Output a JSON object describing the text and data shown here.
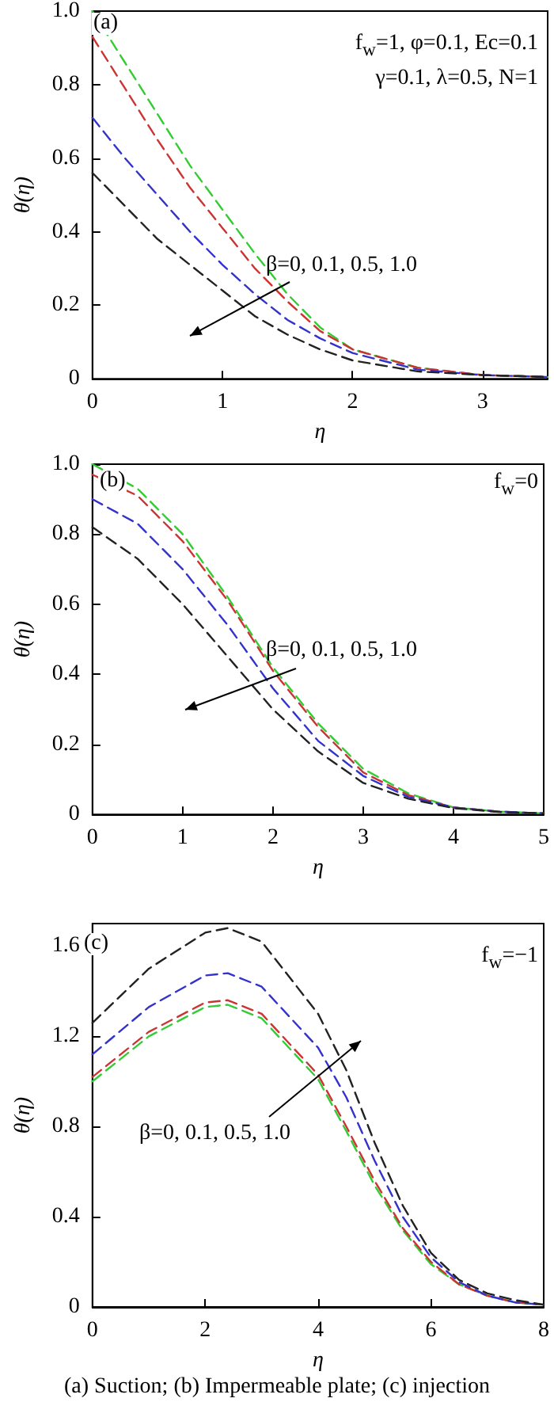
{
  "chart_data": [
    {
      "type": "line",
      "xlabel": "η",
      "ylabel": "θ(η)",
      "annotations": [
        "(a)",
        "f$_{w}$=1, φ=0.1,  Ec=0.1",
        "γ=0.1, λ=0.5, N=1",
        "β=0, 0.1, 0.5, 1.0"
      ],
      "x": [
        0,
        0.25,
        0.5,
        0.75,
        1,
        1.25,
        1.5,
        1.75,
        2,
        2.5,
        3,
        3.5
      ],
      "series": [
        {
          "color": "#33cc33",
          "values": [
            1.0,
            0.86,
            0.72,
            0.58,
            0.46,
            0.34,
            0.23,
            0.14,
            0.08,
            0.03,
            0.01,
            0.005
          ]
        },
        {
          "color": "#cc3333",
          "values": [
            0.93,
            0.79,
            0.65,
            0.52,
            0.41,
            0.3,
            0.21,
            0.13,
            0.08,
            0.03,
            0.01,
            0.005
          ]
        },
        {
          "color": "#3333cc",
          "values": [
            0.71,
            0.6,
            0.5,
            0.4,
            0.31,
            0.23,
            0.16,
            0.11,
            0.07,
            0.025,
            0.01,
            0.005
          ]
        },
        {
          "color": "#222222",
          "values": [
            0.56,
            0.47,
            0.38,
            0.31,
            0.24,
            0.17,
            0.12,
            0.08,
            0.05,
            0.02,
            0.01,
            0.005
          ]
        }
      ],
      "xlim": [
        0,
        3.5
      ],
      "xticks": [
        0,
        1,
        2,
        3
      ],
      "ylim": [
        0,
        1
      ],
      "yticks": [
        0,
        0.2,
        0.4,
        0.6,
        0.8,
        {
          "value": 1,
          "label": "1.0"
        }
      ],
      "grid": false,
      "marker": "none",
      "line_style": "dashed"
    },
    {
      "type": "line",
      "xlabel": "η",
      "ylabel": "θ(η)",
      "annotations": [
        "(b)",
        "f$_{w}$=0",
        "β=0, 0.1, 0.5, 1.0"
      ],
      "x": [
        0,
        0.5,
        1,
        1.5,
        2,
        2.5,
        3,
        3.5,
        4,
        4.5,
        5
      ],
      "series": [
        {
          "color": "#33cc33",
          "values": [
            1.0,
            0.93,
            0.8,
            0.62,
            0.42,
            0.26,
            0.13,
            0.06,
            0.02,
            0.008,
            0.003
          ]
        },
        {
          "color": "#cc3333",
          "values": [
            0.97,
            0.91,
            0.78,
            0.61,
            0.41,
            0.25,
            0.12,
            0.055,
            0.02,
            0.008,
            0.003
          ]
        },
        {
          "color": "#3333cc",
          "values": [
            0.9,
            0.83,
            0.7,
            0.54,
            0.36,
            0.21,
            0.11,
            0.05,
            0.02,
            0.008,
            0.003
          ]
        },
        {
          "color": "#222222",
          "values": [
            0.82,
            0.73,
            0.6,
            0.45,
            0.3,
            0.18,
            0.09,
            0.045,
            0.018,
            0.007,
            0.003
          ]
        }
      ],
      "xlim": [
        0,
        5
      ],
      "xticks": [
        0,
        1,
        2,
        3,
        4,
        5
      ],
      "ylim": [
        0,
        1
      ],
      "yticks": [
        0,
        0.2,
        0.4,
        0.6,
        0.8,
        {
          "value": 1,
          "label": "1.0"
        }
      ],
      "grid": false,
      "marker": "none",
      "line_style": "dashed"
    },
    {
      "type": "line",
      "xlabel": "η",
      "ylabel": "θ(η)",
      "annotations": [
        "(c)",
        "f$_{w}$=−1",
        "β=0, 0.1, 0.5, 1.0",
        "(a) Suction; (b) Impermeable plate; (c) injection"
      ],
      "x": [
        0,
        1,
        2,
        2.4,
        3,
        4,
        4.5,
        5,
        5.5,
        6,
        6.5,
        7,
        7.5,
        8
      ],
      "series": [
        {
          "color": "#33cc33",
          "values": [
            1.0,
            1.2,
            1.33,
            1.34,
            1.28,
            1.01,
            0.78,
            0.54,
            0.34,
            0.19,
            0.1,
            0.05,
            0.02,
            0.01
          ]
        },
        {
          "color": "#cc3333",
          "values": [
            1.02,
            1.22,
            1.35,
            1.36,
            1.3,
            1.03,
            0.8,
            0.56,
            0.35,
            0.2,
            0.1,
            0.05,
            0.02,
            0.01
          ]
        },
        {
          "color": "#3333cc",
          "values": [
            1.12,
            1.33,
            1.47,
            1.48,
            1.42,
            1.15,
            0.93,
            0.65,
            0.4,
            0.22,
            0.11,
            0.05,
            0.02,
            0.01
          ]
        },
        {
          "color": "#222222",
          "values": [
            1.26,
            1.5,
            1.66,
            1.68,
            1.62,
            1.3,
            1.05,
            0.73,
            0.45,
            0.24,
            0.12,
            0.06,
            0.03,
            0.01
          ]
        }
      ],
      "xlim": [
        0,
        8
      ],
      "xticks": [
        0,
        2,
        4,
        6,
        8
      ],
      "ylim": [
        0,
        1.7
      ],
      "yticks": [
        0,
        0.4,
        0.8,
        1.2,
        1.6
      ],
      "grid": false,
      "marker": "none",
      "line_style": "dashed"
    }
  ]
}
